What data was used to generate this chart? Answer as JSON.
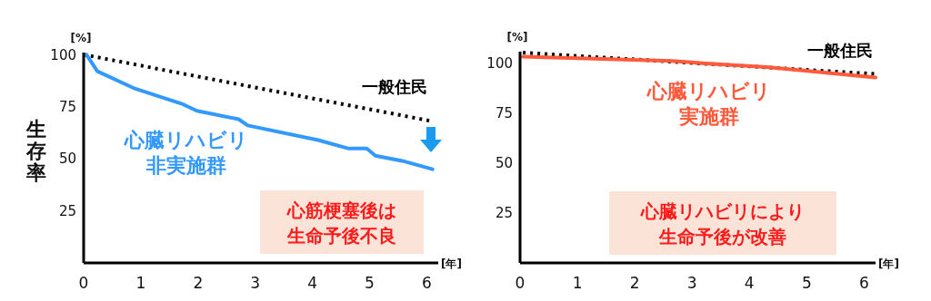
{
  "chart_data": [
    {
      "type": "line",
      "ylabel": "生存率",
      "xlabel": "[年]",
      "annotations": [
        "[%]",
        "心筋梗塞後は生命予後不良"
      ],
      "xlim": [
        0,
        6.2
      ],
      "ylim": [
        0,
        101
      ],
      "xticks": [
        0,
        1,
        2,
        3,
        4,
        5,
        6
      ],
      "yticks": [
        25,
        50,
        75,
        100
      ],
      "grid": false,
      "marker": "none",
      "series": [
        {
          "name": "一般住民",
          "color": "#000000",
          "line_style": "dotted",
          "x": [
            0,
            6.1
          ],
          "values": [
            100,
            68
          ]
        },
        {
          "name": "心臓リハビリ非実施群",
          "color": "#3399ff",
          "line_style": "solid",
          "x": [
            0.05,
            0.24,
            0.87,
            1.71,
            1.98,
            2.71,
            2.87,
            4.1,
            4.62,
            4.95,
            5.1,
            5.57,
            6.1
          ],
          "values": [
            100,
            92,
            84,
            76.5,
            73,
            69,
            66,
            59,
            55,
            55,
            51.5,
            49,
            45
          ]
        }
      ]
    },
    {
      "type": "line",
      "xlabel": "[年]",
      "annotations": [
        "[%]",
        "心臓リハビリにより生命予後が改善"
      ],
      "xlim": [
        0,
        6.2
      ],
      "ylim": [
        0,
        106
      ],
      "xticks": [
        0,
        1,
        2,
        3,
        4,
        5,
        6
      ],
      "yticks": [
        25,
        50,
        75,
        100
      ],
      "grid": false,
      "marker": "none",
      "series": [
        {
          "name": "一般住民",
          "color": "#000000",
          "line_style": "dotted",
          "x": [
            0.05,
            6.2
          ],
          "values": [
            105.5,
            94.8
          ]
        },
        {
          "name": "心臓リハビリ実施群",
          "color": "#ff5a3c",
          "line_style": "solid",
          "x": [
            0.05,
            1.16,
            2.65,
            3.3,
            4.3,
            5.1,
            6.2
          ],
          "values": [
            103.5,
            102.6,
            101.3,
            100,
            98.3,
            96.1,
            93
          ]
        }
      ]
    }
  ]
}
